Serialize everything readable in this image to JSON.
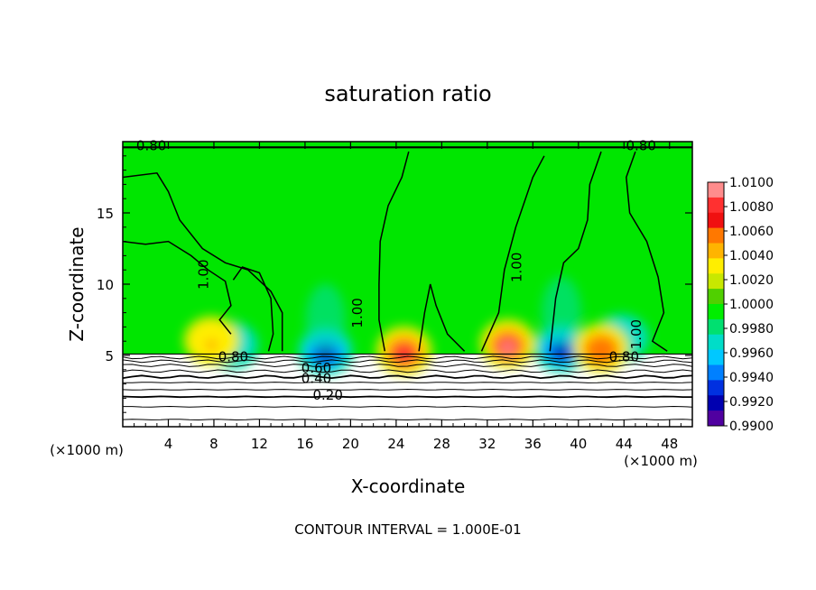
{
  "chart_data": {
    "type": "heatmap",
    "title": "saturation ratio",
    "xlabel": "X-coordinate",
    "ylabel": "Z-coordinate",
    "x_unit": "(×1000 m)",
    "y_unit": "(×1000 m)",
    "xlim": [
      0,
      50
    ],
    "ylim": [
      0,
      20
    ],
    "x_ticks": [
      "4",
      "8",
      "12",
      "16",
      "20",
      "24",
      "28",
      "32",
      "36",
      "40",
      "44",
      "48"
    ],
    "y_ticks": [
      "5",
      "10",
      "15"
    ],
    "colorbar": {
      "range": [
        0.99,
        1.01
      ],
      "labels": [
        "1.0100",
        "1.0080",
        "1.0060",
        "1.0040",
        "1.0020",
        "1.0000",
        "0.9980",
        "0.9960",
        "0.9940",
        "0.9920",
        "0.9900"
      ],
      "colors": [
        "#ff8c8c",
        "#ff3030",
        "#f01010",
        "#ff7800",
        "#ffb400",
        "#ffee00",
        "#c8e800",
        "#50d000",
        "#00ee00",
        "#00e070",
        "#00ddc8",
        "#00c8ff",
        "#0080ff",
        "#0030e0",
        "#0000b0",
        "#5000a0"
      ]
    },
    "contour_labels": [
      "0.20",
      "0.40",
      "0.60",
      "0.80",
      "0.80",
      "1.00",
      "1.00",
      "1.00",
      "1.00",
      "0.80",
      "0.80"
    ],
    "cool_cores": [
      {
        "x": 17.8,
        "z": 5.6,
        "v": 0.9915
      },
      {
        "x": 38.5,
        "z": 5.8,
        "v": 0.992
      },
      {
        "x": 9.5,
        "z": 6.0,
        "v": 0.996
      },
      {
        "x": 43.8,
        "z": 6.5,
        "v": 0.997
      }
    ],
    "warm_cores": [
      {
        "x": 24.7,
        "z": 5.6,
        "v": 1.008
      },
      {
        "x": 33.8,
        "z": 6.1,
        "v": 1.009
      },
      {
        "x": 42.0,
        "z": 5.8,
        "v": 1.006
      },
      {
        "x": 7.8,
        "z": 6.3,
        "v": 1.004
      }
    ],
    "footnote": "CONTOUR INTERVAL = 1.000E-01"
  }
}
